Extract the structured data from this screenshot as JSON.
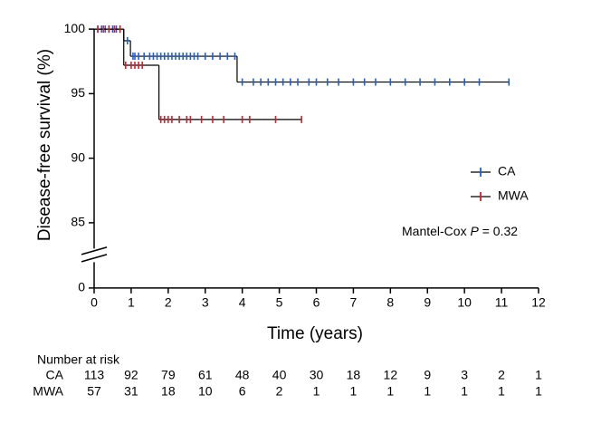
{
  "chart_data": {
    "type": "km",
    "ylabel": "Disease-free survival (%)",
    "xlabel": "Time (years)",
    "xlim": [
      0,
      12
    ],
    "xticks": [
      0,
      1,
      2,
      3,
      4,
      5,
      6,
      7,
      8,
      9,
      10,
      11,
      12
    ],
    "ylim": [
      -0.5,
      100.5
    ],
    "ybreak": [
      2,
      83
    ],
    "yticks": [
      0,
      85,
      90,
      95,
      100
    ],
    "line_color": "#000000",
    "series": [
      {
        "name": "CA",
        "color": "#1f5fd6",
        "x": [
          0,
          0.8,
          0.98,
          3.86
        ],
        "values": [
          100,
          99.1,
          97.9,
          95.9
        ],
        "end": 11.2,
        "censor_x": [
          0.1,
          0.2,
          0.3,
          0.4,
          0.5,
          0.6,
          0.7,
          0.9,
          1.05,
          1.1,
          1.2,
          1.35,
          1.5,
          1.6,
          1.7,
          1.8,
          1.9,
          2.0,
          2.1,
          2.2,
          2.3,
          2.4,
          2.5,
          2.6,
          2.7,
          2.8,
          3.0,
          3.2,
          3.4,
          3.6,
          3.8,
          4.0,
          4.3,
          4.5,
          4.7,
          4.9,
          5.1,
          5.3,
          5.5,
          5.8,
          6.0,
          6.3,
          6.6,
          7.0,
          7.3,
          7.6,
          8.0,
          8.4,
          8.8,
          9.2,
          9.6,
          10.0,
          10.4,
          11.2
        ],
        "censor_values": [
          100,
          100,
          100,
          100,
          100,
          100,
          100,
          99.1,
          97.9,
          97.9,
          97.9,
          97.9,
          97.9,
          97.9,
          97.9,
          97.9,
          97.9,
          97.9,
          97.9,
          97.9,
          97.9,
          97.9,
          97.9,
          97.9,
          97.9,
          97.9,
          97.9,
          97.9,
          97.9,
          97.9,
          97.9,
          95.9,
          95.9,
          95.9,
          95.9,
          95.9,
          95.9,
          95.9,
          95.9,
          95.9,
          95.9,
          95.9,
          95.9,
          95.9,
          95.9,
          95.9,
          95.9,
          95.9,
          95.9,
          95.9,
          95.9,
          95.9,
          95.9,
          95.9
        ],
        "at_risk": [
          113,
          92,
          79,
          61,
          48,
          40,
          30,
          18,
          12,
          9,
          3,
          2,
          1
        ]
      },
      {
        "name": "MWA",
        "color": "#d0202e",
        "x": [
          0,
          0.8,
          1.75
        ],
        "values": [
          100,
          97.2,
          93.0
        ],
        "end": 5.6,
        "censor_x": [
          0.1,
          0.25,
          0.4,
          0.55,
          0.7,
          0.85,
          1.0,
          1.1,
          1.2,
          1.3,
          1.8,
          1.9,
          2.0,
          2.1,
          2.3,
          2.5,
          2.6,
          2.9,
          3.2,
          3.5,
          4.0,
          4.2,
          4.9,
          5.6
        ],
        "censor_values": [
          100,
          100,
          100,
          100,
          100,
          97.2,
          97.2,
          97.2,
          97.2,
          97.2,
          93.0,
          93.0,
          93.0,
          93.0,
          93.0,
          93.0,
          93.0,
          93.0,
          93.0,
          93.0,
          93.0,
          93.0,
          93.0,
          93.0
        ],
        "at_risk": [
          57,
          31,
          18,
          10,
          6,
          2,
          1,
          1,
          1,
          1,
          1,
          1,
          1
        ]
      }
    ],
    "annotation": {
      "prefix": "Mantel-Cox",
      "italic": "P",
      "suffix": "= 0.32"
    },
    "risk_title": "Number at risk"
  }
}
